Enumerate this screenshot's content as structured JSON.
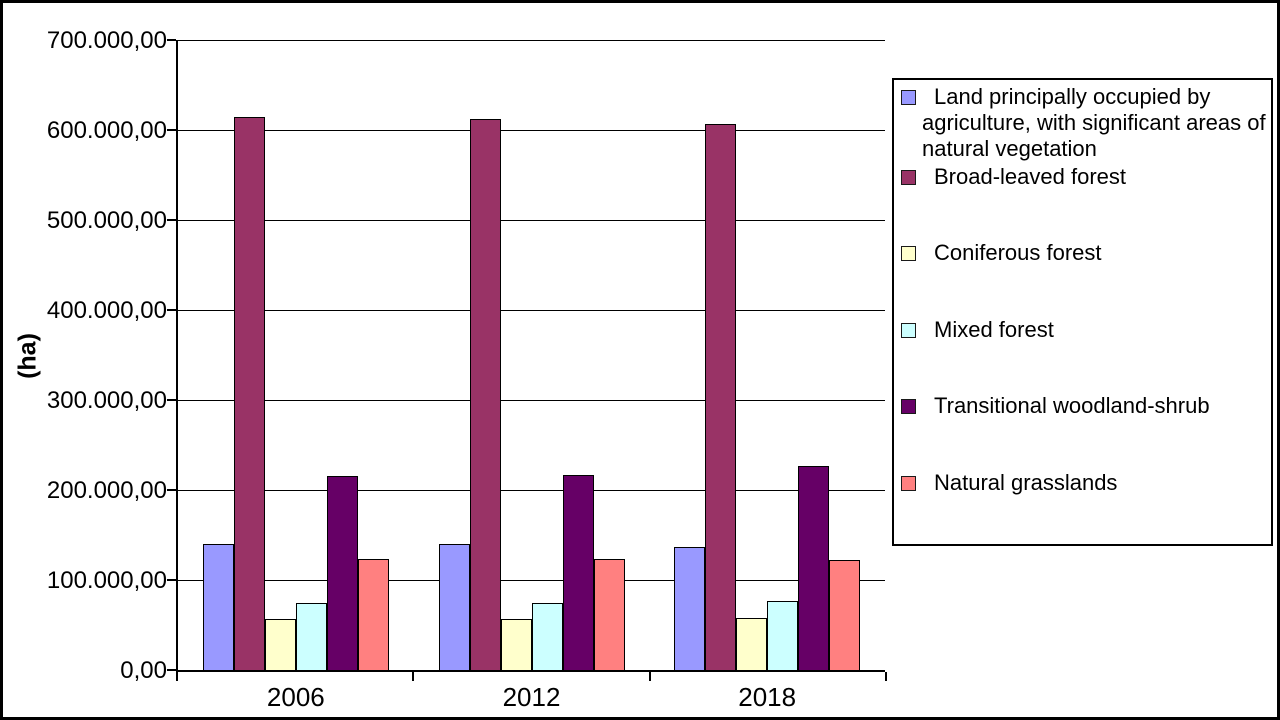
{
  "chart_data": {
    "type": "bar",
    "title": "",
    "ylabel": "(ha)",
    "xlabel": "",
    "categories": [
      "2006",
      "2012",
      "2018"
    ],
    "series": [
      {
        "name": "Land principally occupied by agriculture, with significant areas of natural vegetation",
        "color": "#9999FF",
        "values": [
          139000,
          139000,
          136000
        ]
      },
      {
        "name": "Broad-leaved forest",
        "color": "#993366",
        "values": [
          613000,
          611000,
          606000
        ]
      },
      {
        "name": "Coniferous forest",
        "color": "#FFFFCC",
        "values": [
          56000,
          56000,
          57000
        ]
      },
      {
        "name": "Mixed forest",
        "color": "#CCFFFF",
        "values": [
          73000,
          73000,
          76000
        ]
      },
      {
        "name": "Transitional woodland-shrub",
        "color": "#660066",
        "values": [
          214000,
          216000,
          226000
        ]
      },
      {
        "name": "Natural grasslands",
        "color": "#FF8080",
        "values": [
          122000,
          122000,
          121000
        ]
      }
    ],
    "ylim": [
      0,
      700000
    ],
    "ytick_step": 100000,
    "ytick_labels": [
      "0,00",
      "100.000,00",
      "200.000,00",
      "300.000,00",
      "400.000,00",
      "500.000,00",
      "600.000,00",
      "700.000,00"
    ],
    "grid": true,
    "legend_position": "right",
    "bar_border_color": "#000000",
    "background_color": "#FFFFFF"
  }
}
